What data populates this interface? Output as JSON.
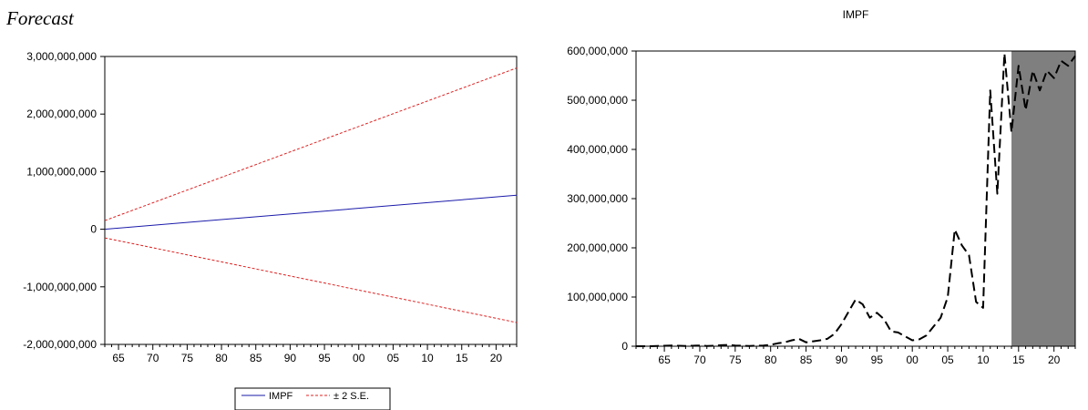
{
  "page": {
    "heading": "Forecast"
  },
  "chart_data": [
    {
      "type": "line",
      "title": "",
      "xlabel": "",
      "ylabel": "",
      "x_range": [
        1963,
        2023
      ],
      "ylim": [
        -2000000000,
        3000000000
      ],
      "yticks": [
        -2000000000,
        -1000000000,
        0,
        1000000000,
        2000000000,
        3000000000
      ],
      "ytick_labels": [
        "-2,000,000,000",
        "-1,000,000,000",
        "0",
        "1,000,000,000",
        "2,000,000,000",
        "3,000,000,000"
      ],
      "xticks": [
        1965,
        1970,
        1975,
        1980,
        1985,
        1990,
        1995,
        2000,
        2005,
        2010,
        2015,
        2020
      ],
      "xtick_labels": [
        "65",
        "70",
        "75",
        "80",
        "85",
        "90",
        "95",
        "00",
        "05",
        "10",
        "15",
        "20"
      ],
      "grid": false,
      "legend": {
        "position": "bottom",
        "entries": [
          {
            "label": "IMPF",
            "color": "#1a1aaa",
            "style": "solid"
          },
          {
            "label": "± 2 S.E.",
            "color": "#e02020",
            "style": "dashed"
          }
        ]
      },
      "series": [
        {
          "name": "IMPF",
          "color": "#1a1aaa",
          "style": "solid",
          "x": [
            1963,
            2023
          ],
          "y": [
            0,
            590000000
          ]
        },
        {
          "name": "± 2 S.E.",
          "color": "#e02020",
          "style": "dashed",
          "x": [
            1963,
            2023
          ],
          "y": [
            150000000,
            2800000000
          ]
        },
        {
          "name": "± 2 S.E. (lower)",
          "color": "#e02020",
          "style": "dashed",
          "x": [
            1963,
            2023
          ],
          "y": [
            -150000000,
            -1620000000
          ]
        }
      ]
    },
    {
      "type": "line",
      "title": "IMPF",
      "xlabel": "",
      "ylabel": "",
      "x_range": [
        1961,
        2023
      ],
      "ylim": [
        0,
        600000000
      ],
      "yticks": [
        0,
        100000000,
        200000000,
        300000000,
        400000000,
        500000000,
        600000000
      ],
      "ytick_labels": [
        "0",
        "100,000,000",
        "200,000,000",
        "300,000,000",
        "400,000,000",
        "500,000,000",
        "600,000,000"
      ],
      "xticks": [
        1965,
        1970,
        1975,
        1980,
        1985,
        1990,
        1995,
        2000,
        2005,
        2010,
        2015,
        2020
      ],
      "xtick_labels": [
        "65",
        "70",
        "75",
        "80",
        "85",
        "90",
        "95",
        "00",
        "05",
        "10",
        "15",
        "20"
      ],
      "grid": false,
      "shaded_region": {
        "x": [
          2014,
          2023
        ],
        "color": "#7f7f7f"
      },
      "series": [
        {
          "name": "",
          "color": "#000000",
          "style": "dashed",
          "x": [
            1961,
            1962,
            1963,
            1964,
            1965,
            1966,
            1967,
            1968,
            1969,
            1970,
            1971,
            1972,
            1973,
            1974,
            1975,
            1976,
            1977,
            1978,
            1979,
            1980,
            1981,
            1982,
            1983,
            1984,
            1985,
            1986,
            1987,
            1988,
            1989,
            1990,
            1991,
            1992,
            1993,
            1994,
            1995,
            1996,
            1997,
            1998,
            1999,
            2000,
            2001,
            2002,
            2003,
            2004,
            2005,
            2006,
            2007,
            2008,
            2009,
            2010,
            2011,
            2012,
            2013,
            2014,
            2015,
            2016,
            2017,
            2018,
            2019,
            2020,
            2021,
            2022,
            2023
          ],
          "y": [
            0,
            0,
            0,
            500000,
            1000000,
            1500000,
            1000000,
            500000,
            1000000,
            1500000,
            500000,
            1000000,
            2000000,
            2500000,
            1500000,
            1000000,
            500000,
            1000000,
            1500000,
            3000000,
            6000000,
            8000000,
            12000000,
            15000000,
            8000000,
            10000000,
            12000000,
            15000000,
            25000000,
            45000000,
            70000000,
            95000000,
            85000000,
            58000000,
            68000000,
            55000000,
            30000000,
            28000000,
            20000000,
            12000000,
            14000000,
            22000000,
            40000000,
            58000000,
            100000000,
            237000000,
            205000000,
            185000000,
            90000000,
            78000000,
            520000000,
            310000000,
            595000000,
            435000000,
            570000000,
            480000000,
            560000000,
            520000000,
            560000000,
            545000000,
            580000000,
            570000000,
            590000000
          ]
        }
      ]
    }
  ]
}
